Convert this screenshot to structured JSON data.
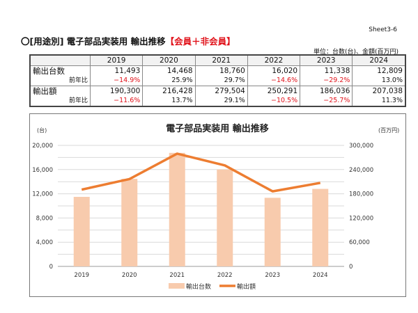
{
  "sheet_label": "Sheet3-6",
  "title_main": "〇[用途別] 電子部品実装用 輸出推移",
  "title_red": "【会員＋非会員】",
  "unit_note": "単位：台数(台)、金額(百万円)",
  "table": {
    "years": [
      "2019",
      "2020",
      "2021",
      "2022",
      "2023",
      "2024"
    ],
    "rows": [
      {
        "label": "輸出台数",
        "values": [
          "11,493",
          "14,468",
          "18,760",
          "16,020",
          "11,338",
          "12,809"
        ]
      },
      {
        "label": "前年比",
        "values": [
          "−14.9%",
          "25.9%",
          "29.7%",
          "−14.6%",
          "−29.2%",
          "13.0%"
        ]
      },
      {
        "label": "輸出額",
        "values": [
          "190,300",
          "216,428",
          "279,504",
          "250,291",
          "186,036",
          "207,038"
        ]
      },
      {
        "label": "前年比",
        "values": [
          "−11.6%",
          "13.7%",
          "29.1%",
          "−10.5%",
          "−25.7%",
          "11.3%"
        ]
      }
    ]
  },
  "chart_data": {
    "type": "bar+line",
    "title": "電子部品実装用 輸出推移",
    "categories": [
      "2019",
      "2020",
      "2021",
      "2022",
      "2023",
      "2024"
    ],
    "y_left_label": "(台)",
    "y_right_label": "(百万円)",
    "ylim_left": [
      0,
      20000
    ],
    "ylim_right": [
      0,
      300000
    ],
    "y_left_ticks": [
      "0",
      "4,000",
      "8,000",
      "12,000",
      "16,000",
      "20,000"
    ],
    "y_right_ticks": [
      "0",
      "60,000",
      "120,000",
      "180,000",
      "240,000",
      "300,000"
    ],
    "grid": true,
    "legend_position": "bottom",
    "series": [
      {
        "name": "輸出台数",
        "type": "bar",
        "axis": "left",
        "color": "#f8cbad",
        "values": [
          11493,
          14468,
          18760,
          16020,
          11338,
          12809
        ]
      },
      {
        "name": "輸出額",
        "type": "line",
        "axis": "right",
        "color": "#ed7d31",
        "values": [
          190300,
          216428,
          279504,
          250291,
          186036,
          207038
        ]
      }
    ]
  }
}
